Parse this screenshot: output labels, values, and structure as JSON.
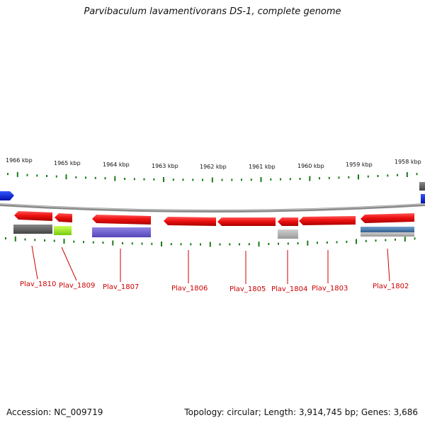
{
  "title": "Parvibaculum lavamentivorans DS-1, complete genome",
  "footer": {
    "accession": "Accession: NC_009719",
    "info": "Topology: circular; Length: 3,914,745 bp; Genes: 3,686"
  },
  "kbp_labels": [
    "1966 kbp",
    "1965 kbp",
    "1964 kbp",
    "1963 kbp",
    "1962 kbp",
    "1961 kbp",
    "1960 kbp",
    "1959 kbp",
    "1958 kbp"
  ],
  "gene_labels": [
    "Plav_1810",
    "Plav_1809",
    "Plav_1807",
    "Plav_1806",
    "Plav_1805",
    "Plav_1804",
    "Plav_1803",
    "Plav_1802"
  ],
  "colors": {
    "gene_red": "#ee1111",
    "backbone": "#888888",
    "tick": "#1a7a1a",
    "label": "#cc0000",
    "edge_blue": "#1133dd",
    "lime": "#99ee22",
    "purple": "#6a5acd",
    "steelblue": "#4a7fb5",
    "gray": "#666666",
    "lightgray": "#b0b0b0"
  }
}
